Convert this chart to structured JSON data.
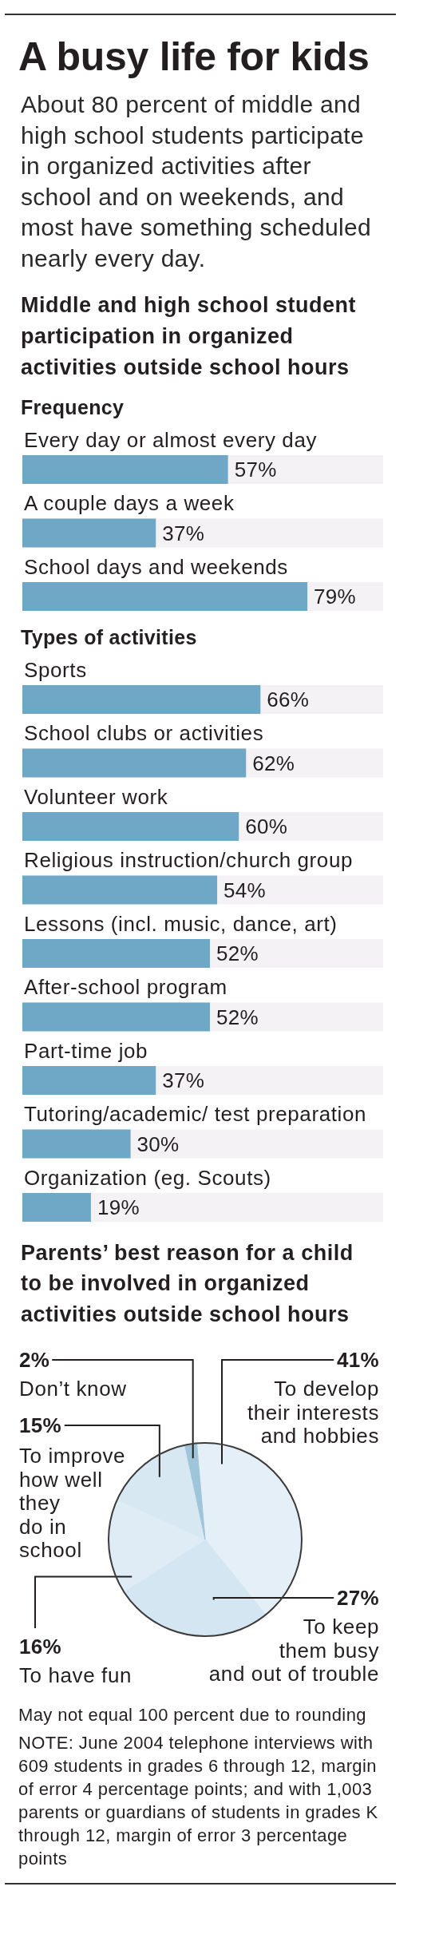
{
  "chart_data": [
    {
      "type": "other",
      "title": "A busy life for kids",
      "subtitle": "About 80 percent of middle and high school students participate in organized activities after school and on weekends, and most have something scheduled nearly every day."
    },
    {
      "type": "bar",
      "orientation": "horizontal",
      "title": "Middle and high school student participation in organized activities outside school hours",
      "subtitle": "Frequency",
      "categories": [
        "Every day or almost every day",
        "A couple days a week",
        "School days and weekends"
      ],
      "values": [
        57,
        37,
        79
      ],
      "value_labels": [
        "57%",
        "37%",
        "79%"
      ],
      "color": "#6fa7c7",
      "xlim": [
        0,
        100
      ],
      "tick_labels": "y"
    },
    {
      "type": "bar",
      "orientation": "horizontal",
      "title": "Types of activities",
      "categories": [
        "Sports",
        "School clubs or activities",
        "Volunteer work",
        "Religious instruction/church group",
        "Lessons (incl. music, dance, art)",
        "After-school program",
        "Part-time job",
        "Tutoring/academic/ test preparation",
        "Organization (eg. Scouts)"
      ],
      "values": [
        66,
        62,
        60,
        54,
        52,
        52,
        37,
        30,
        19
      ],
      "value_labels": [
        "66%",
        "62%",
        "60%",
        "54%",
        "52%",
        "52%",
        "37%",
        "30%",
        "19%"
      ],
      "color": "#6fa7c7",
      "xlim": [
        0,
        100
      ],
      "tick_labels": "y"
    },
    {
      "type": "pie",
      "title": "Parents’ best reason for a child to be involved in organized activities outside school hours",
      "categories": [
        "To develop their interests and hobbies",
        "To keep them busy and out of trouble",
        "To have fun",
        "To improve how well they do in school",
        "Don’t know"
      ],
      "values": [
        41,
        27,
        16,
        15,
        2
      ],
      "value_labels": [
        "41%",
        "27%",
        "16%",
        "15%",
        "2%"
      ],
      "colors": [
        "#e4eff7",
        "#d4e6f1",
        "#dfecf5",
        "#d8e8f2",
        "#9fc5da"
      ],
      "annotations": [
        "May not equal 100 percent due to rounding",
        "NOTE: June 2004 telephone interviews with 609 students in grades 6 through 12, margin of error 4 percentage points; and with 1,003 parents or guardians of students in grades K through 12, margin of error 3 percentage points"
      ]
    }
  ]
}
